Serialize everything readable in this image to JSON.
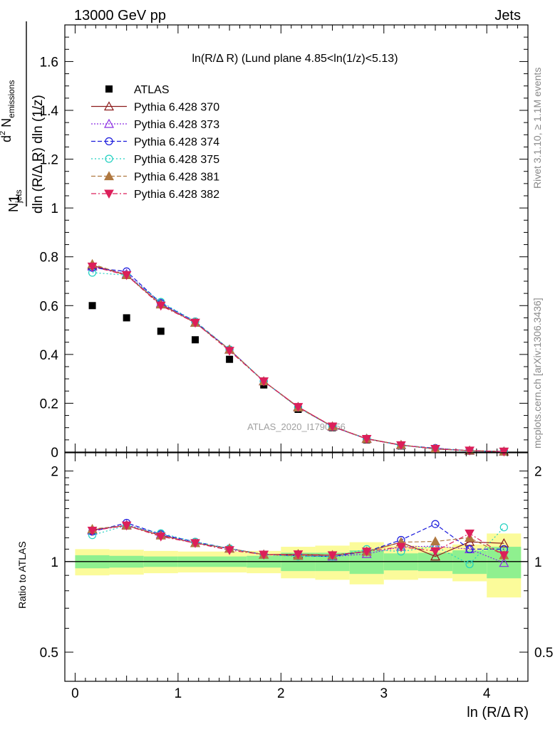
{
  "header": {
    "left": "13000 GeV pp",
    "right": "Jets",
    "plot_title": "ln(R/Δ R) (Lund plane 4.85<ln(1/z)<5.13)",
    "side_top": "Rivet 3.1.10, ≥ 1.1M events",
    "side_bottom": "mcplots.cern.ch [arXiv:1306.3436]",
    "watermark": "ATLAS_2020_I1790256"
  },
  "colors": {
    "ATLAS": "#000000",
    "Pythia 6.428 370": "#8b1a1a",
    "Pythia 6.428 373": "#8a2be2",
    "Pythia 6.428 374": "#1a1adc",
    "Pythia 6.428 375": "#20d0c0",
    "Pythia 6.428 381": "#b07840",
    "Pythia 6.428 382": "#dc1f5a",
    "band_inner": "#8ff08f",
    "band_outer": "#fbfb9a"
  },
  "chart_data": [
    {
      "type": "scatter",
      "ylabel": "1/N_jets d² N_emissions / dln (R/Δ R) dln (1/z)",
      "ylim": [
        0,
        1.75
      ],
      "y_ticks": [
        "0",
        "0.2",
        "0.4",
        "0.6",
        "0.8",
        "1",
        "1.2",
        "1.4",
        "1.6"
      ],
      "x": [
        0.167,
        0.5,
        0.833,
        1.167,
        1.5,
        1.833,
        2.167,
        2.5,
        2.833,
        3.167,
        3.5,
        3.833,
        4.167
      ],
      "legend": {
        "placement": "top-left"
      },
      "series": [
        {
          "name": "ATLAS",
          "values": [
            0.6,
            0.55,
            0.495,
            0.46,
            0.38,
            0.275,
            0.175,
            0.1,
            0.05,
            0.025,
            0.012,
            0.005,
            0.002
          ]
        },
        {
          "name": "Pythia 6.428 370",
          "values": [
            0.765,
            0.725,
            0.605,
            0.53,
            0.42,
            0.29,
            0.185,
            0.105,
            0.055,
            0.029,
            0.0125,
            0.0058,
            0.0023
          ]
        },
        {
          "name": "Pythia 6.428 373",
          "values": [
            0.76,
            0.73,
            0.61,
            0.53,
            0.42,
            0.29,
            0.183,
            0.104,
            0.054,
            0.028,
            0.0135,
            0.0055,
            0.002
          ]
        },
        {
          "name": "Pythia 6.428 374",
          "values": [
            0.755,
            0.74,
            0.61,
            0.535,
            0.42,
            0.29,
            0.183,
            0.104,
            0.054,
            0.028,
            0.016,
            0.0055,
            0.0022
          ]
        },
        {
          "name": "Pythia 6.428 375",
          "values": [
            0.735,
            0.725,
            0.615,
            0.535,
            0.42,
            0.29,
            0.182,
            0.104,
            0.055,
            0.027,
            0.0135,
            0.005,
            0.0026
          ]
        },
        {
          "name": "Pythia 6.428 381",
          "values": [
            0.77,
            0.725,
            0.605,
            0.53,
            0.42,
            0.29,
            0.183,
            0.105,
            0.054,
            0.029,
            0.014,
            0.006,
            0.0021
          ]
        },
        {
          "name": "Pythia 6.428 382",
          "values": [
            0.76,
            0.725,
            0.6,
            0.53,
            0.415,
            0.29,
            0.185,
            0.105,
            0.054,
            0.028,
            0.013,
            0.0062,
            0.0021
          ]
        }
      ]
    },
    {
      "type": "scatter",
      "ylabel": "Ratio to ATLAS",
      "xlabel": "ln (R/Δ R)",
      "ylim": [
        0.4,
        2.3
      ],
      "log_y": true,
      "y_ticks": [
        "0.5",
        "1",
        "2"
      ],
      "xlim": [
        -0.1,
        4.4
      ],
      "x_ticks": [
        "0",
        "1",
        "2",
        "3",
        "4"
      ],
      "x": [
        0.167,
        0.5,
        0.833,
        1.167,
        1.5,
        1.833,
        2.167,
        2.5,
        2.833,
        3.167,
        3.5,
        3.833,
        4.167
      ],
      "bands": {
        "edges": [
          0.0,
          0.333,
          0.667,
          1.0,
          1.333,
          1.667,
          2.0,
          2.333,
          2.667,
          3.0,
          3.333,
          3.667,
          4.0,
          4.333
        ],
        "inner_lo": [
          0.95,
          0.955,
          0.96,
          0.96,
          0.96,
          0.955,
          0.93,
          0.93,
          0.91,
          0.935,
          0.93,
          0.91,
          0.88
        ],
        "inner_hi": [
          1.05,
          1.045,
          1.04,
          1.04,
          1.04,
          1.045,
          1.07,
          1.07,
          1.09,
          1.065,
          1.07,
          1.09,
          1.12
        ],
        "outer_lo": [
          0.9,
          0.905,
          0.915,
          0.92,
          0.92,
          0.915,
          0.88,
          0.87,
          0.84,
          0.87,
          0.88,
          0.86,
          0.76
        ],
        "outer_hi": [
          1.1,
          1.095,
          1.085,
          1.08,
          1.08,
          1.085,
          1.12,
          1.13,
          1.16,
          1.13,
          1.12,
          1.14,
          1.24
        ]
      },
      "series": [
        {
          "name": "Pythia 6.428 370",
          "values": [
            1.275,
            1.318,
            1.222,
            1.152,
            1.105,
            1.055,
            1.057,
            1.05,
            1.08,
            1.16,
            1.04,
            1.163,
            1.15
          ]
        },
        {
          "name": "Pythia 6.428 373",
          "values": [
            1.267,
            1.327,
            1.232,
            1.152,
            1.105,
            1.055,
            1.046,
            1.04,
            1.06,
            1.12,
            1.125,
            1.1,
            0.99
          ]
        },
        {
          "name": "Pythia 6.428 374",
          "values": [
            1.258,
            1.345,
            1.232,
            1.163,
            1.105,
            1.055,
            1.046,
            1.04,
            1.08,
            1.18,
            1.333,
            1.1,
            1.1
          ]
        },
        {
          "name": "Pythia 6.428 375",
          "values": [
            1.225,
            1.318,
            1.242,
            1.163,
            1.105,
            1.055,
            1.04,
            1.04,
            1.1,
            1.08,
            1.125,
            0.98,
            1.3
          ]
        },
        {
          "name": "Pythia 6.428 381",
          "values": [
            1.283,
            1.318,
            1.222,
            1.152,
            1.105,
            1.055,
            1.046,
            1.05,
            1.08,
            1.16,
            1.167,
            1.2,
            1.05
          ]
        },
        {
          "name": "Pythia 6.428 382",
          "values": [
            1.267,
            1.318,
            1.212,
            1.152,
            1.092,
            1.055,
            1.057,
            1.05,
            1.08,
            1.12,
            1.083,
            1.24,
            1.05
          ]
        }
      ]
    }
  ]
}
